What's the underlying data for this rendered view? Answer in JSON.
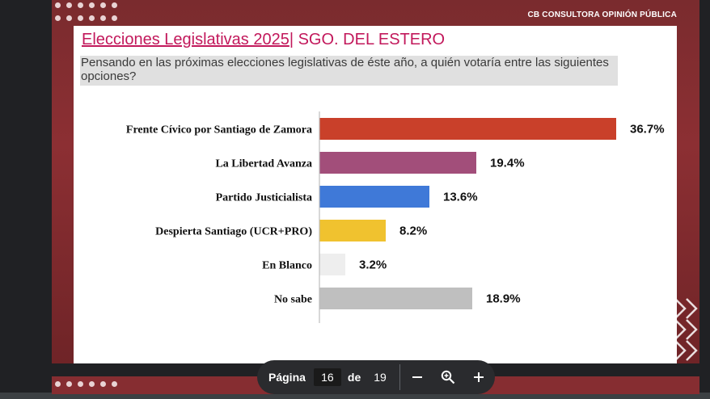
{
  "slide": {
    "brand": "CB CONSULTORA OPINIÓN PÚBLICA",
    "title_main": "Elecciones Legislativas 2025",
    "title_sep": "|",
    "title_sub": " SGO. DEL ESTERO",
    "question": "Pensando en las próximas elecciones legislativas de éste año, a quién votaría entre las siguientes opciones?"
  },
  "chart_data": {
    "type": "bar",
    "orientation": "horizontal",
    "categories": [
      "Frente Cívico por Santiago de Zamora",
      "La Libertad Avanza",
      "Partido Justicialista",
      "Despierta Santiago (UCR+PRO)",
      "En Blanco",
      "No sabe"
    ],
    "values": [
      36.7,
      19.4,
      13.6,
      8.2,
      3.2,
      18.9
    ],
    "value_labels": [
      "36.7%",
      "19.4%",
      "13.6%",
      "8.2%",
      "3.2%",
      "18.9%"
    ],
    "colors": [
      "#c9402a",
      "#a24e7a",
      "#3f79d8",
      "#f0c22f",
      "#eeeeee",
      "#bfbfbf"
    ],
    "xlim": [
      0,
      40
    ],
    "grid": false,
    "legend": "none"
  },
  "pager": {
    "label": "Página",
    "current": "16",
    "of": "de",
    "total": "19"
  },
  "colors": {
    "slide_bg": "#862d31",
    "accent": "#c2185b",
    "viewer_bg": "#202124"
  }
}
